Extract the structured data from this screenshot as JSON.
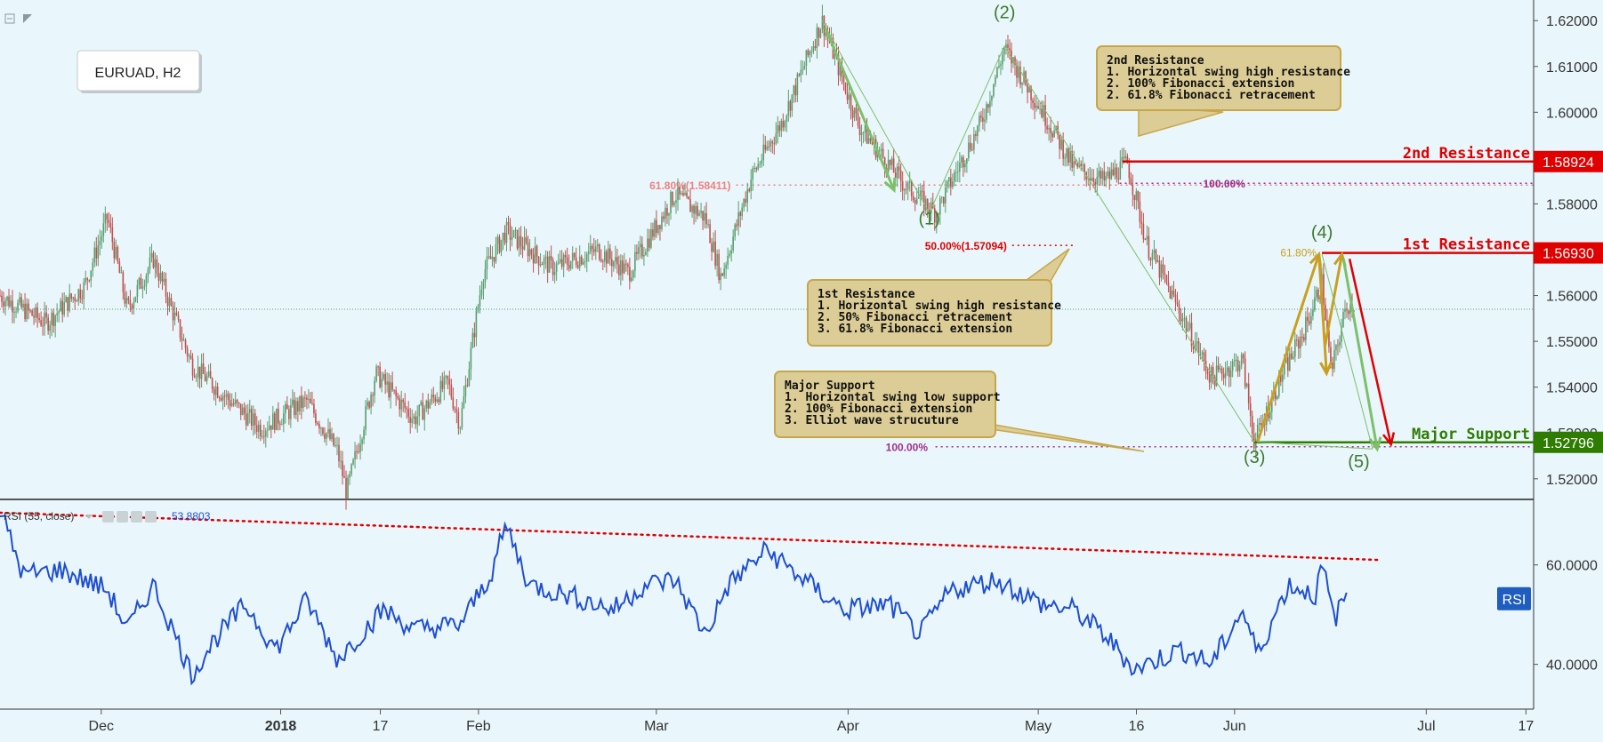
{
  "symbol_label": "EURUAD, H2",
  "colors": {
    "background": "#e9f6fb",
    "up_candle": "#5a9e6f",
    "down_candle": "#c0504d",
    "resistance": "#e00000",
    "support": "#2e7d00",
    "wave_green": "#7cc06a",
    "wave_gold": "#c8a020",
    "rsi_line": "#1f4fd0",
    "fib_magenta": "#a0308a",
    "annotation_bg": "#dccd96",
    "annotation_border": "#c7a64a"
  },
  "chart_data": [
    {
      "type": "line",
      "title": "EURUAD, H2",
      "y_axis": {
        "ylim": [
          1.5155,
          1.6245
        ],
        "ticks": [
          "1.52000",
          "1.53000",
          "1.54000",
          "1.55000",
          "1.56000",
          "1.57000",
          "1.58000",
          "1.59000",
          "1.60000",
          "1.61000",
          "1.62000"
        ]
      },
      "x_axis": {
        "ticks": [
          {
            "label": "Dec",
            "t": 0.066
          },
          {
            "label": "2018",
            "t": 0.183
          },
          {
            "label": "17",
            "t": 0.248
          },
          {
            "label": "Feb",
            "t": 0.312
          },
          {
            "label": "Mar",
            "t": 0.428
          },
          {
            "label": "Apr",
            "t": 0.553
          },
          {
            "label": "May",
            "t": 0.677
          },
          {
            "label": "16",
            "t": 0.741
          },
          {
            "label": "Jun",
            "t": 0.805
          },
          {
            "label": "Jul",
            "t": 0.93
          },
          {
            "label": "17",
            "t": 0.995
          }
        ]
      },
      "price_path": [
        [
          0.0,
          1.56
        ],
        [
          0.03,
          1.554
        ],
        [
          0.055,
          1.562
        ],
        [
          0.07,
          1.577
        ],
        [
          0.083,
          1.557
        ],
        [
          0.1,
          1.568
        ],
        [
          0.125,
          1.545
        ],
        [
          0.15,
          1.537
        ],
        [
          0.17,
          1.531
        ],
        [
          0.2,
          1.537
        ],
        [
          0.22,
          1.526
        ],
        [
          0.226,
          1.517
        ],
        [
          0.245,
          1.543
        ],
        [
          0.27,
          1.533
        ],
        [
          0.292,
          1.541
        ],
        [
          0.3,
          1.532
        ],
        [
          0.315,
          1.565
        ],
        [
          0.33,
          1.574
        ],
        [
          0.36,
          1.566
        ],
        [
          0.39,
          1.57
        ],
        [
          0.41,
          1.565
        ],
        [
          0.44,
          1.582
        ],
        [
          0.46,
          1.577
        ],
        [
          0.47,
          1.564
        ],
        [
          0.49,
          1.586
        ],
        [
          0.51,
          1.598
        ],
        [
          0.536,
          1.62
        ],
        [
          0.56,
          1.597
        ],
        [
          0.59,
          1.584
        ],
        [
          0.61,
          1.578
        ],
        [
          0.64,
          1.598
        ],
        [
          0.655,
          1.614
        ],
        [
          0.68,
          1.6
        ],
        [
          0.7,
          1.588
        ],
        [
          0.72,
          1.585
        ],
        [
          0.735,
          1.589
        ],
        [
          0.748,
          1.571
        ],
        [
          0.77,
          1.556
        ],
        [
          0.79,
          1.542
        ],
        [
          0.81,
          1.546
        ],
        [
          0.818,
          1.528
        ],
        [
          0.835,
          1.542
        ],
        [
          0.85,
          1.552
        ],
        [
          0.862,
          1.563
        ],
        [
          0.868,
          1.543
        ],
        [
          0.878,
          1.558
        ]
      ],
      "levels": [
        {
          "name": "2nd Resistance",
          "value": 1.58924,
          "label": "1.58924",
          "from": 0.732
        },
        {
          "name": "1st Resistance",
          "value": 1.5693,
          "label": "1.56930",
          "from": 0.862
        },
        {
          "name": "Major Support",
          "value": 1.52796,
          "label": "1.52796",
          "from": 0.818
        }
      ],
      "current_price_line": 1.557,
      "fib_lines": [
        {
          "label": "61.80%(1.58411)",
          "value": 1.58411,
          "from": 0.48,
          "to": 1.0,
          "color": "#f08080"
        },
        {
          "label": "50.00%(1.57094)",
          "value": 1.57094,
          "from": 0.66,
          "to": 0.7,
          "color": "#e00000"
        },
        {
          "label": "100.00%",
          "value": 1.5845,
          "from": 0.73,
          "to": 1.0,
          "color": "#a0308a"
        },
        {
          "label": "100.00%",
          "value": 1.527,
          "from": 0.61,
          "to": 1.0,
          "color": "#a0308a"
        }
      ],
      "gold_label_618": "61.80%",
      "wave_labels": [
        {
          "label": "(1)",
          "t": 0.606,
          "v": 1.5755
        },
        {
          "label": "(2)",
          "t": 0.655,
          "v": 1.6205
        },
        {
          "label": "(3)",
          "t": 0.818,
          "v": 1.5235
        },
        {
          "label": "(4)",
          "t": 0.862,
          "v": 1.5725
        },
        {
          "label": "(5)",
          "t": 0.886,
          "v": 1.5225
        }
      ],
      "annotations": [
        {
          "title": "2nd Resistance",
          "lines": [
            "1. Horizontal swing high resistance",
            "2. 100% Fibonacci extension",
            "2. 61.8% Fibonacci retracement"
          ]
        },
        {
          "title": "1st Resistance",
          "lines": [
            "1. Horizontal swing high resistance",
            "2. 50% Fibonacci retracement",
            "3. 61.8% Fibonacci extension"
          ]
        },
        {
          "title": "Major Support",
          "lines": [
            "1. Horizontal swing low support",
            "2. 100% Fibonacci extension",
            "3. Elliot wave strucuture"
          ]
        }
      ]
    },
    {
      "type": "line",
      "title": "RSI (55, close)",
      "current_value": "53.8803",
      "badge": "RSI",
      "y_axis": {
        "ylim": [
          31,
          73
        ],
        "ticks": [
          "40.0000",
          "60.0000"
        ]
      },
      "trendline": [
        [
          0.0,
          70.5
        ],
        [
          0.9,
          61.0
        ]
      ],
      "rsi_path": [
        [
          0.0,
          71
        ],
        [
          0.015,
          58
        ],
        [
          0.04,
          59
        ],
        [
          0.07,
          55
        ],
        [
          0.083,
          47
        ],
        [
          0.1,
          56
        ],
        [
          0.125,
          38
        ],
        [
          0.14,
          45
        ],
        [
          0.16,
          52
        ],
        [
          0.18,
          43
        ],
        [
          0.2,
          53
        ],
        [
          0.22,
          41
        ],
        [
          0.25,
          51
        ],
        [
          0.27,
          47
        ],
        [
          0.3,
          48
        ],
        [
          0.32,
          58
        ],
        [
          0.33,
          68
        ],
        [
          0.345,
          56
        ],
        [
          0.37,
          54
        ],
        [
          0.4,
          51
        ],
        [
          0.42,
          56
        ],
        [
          0.44,
          57
        ],
        [
          0.46,
          46
        ],
        [
          0.475,
          56
        ],
        [
          0.5,
          63
        ],
        [
          0.52,
          58
        ],
        [
          0.55,
          51
        ],
        [
          0.58,
          52
        ],
        [
          0.6,
          46
        ],
        [
          0.62,
          55
        ],
        [
          0.65,
          57
        ],
        [
          0.68,
          52
        ],
        [
          0.7,
          51
        ],
        [
          0.72,
          46
        ],
        [
          0.74,
          39
        ],
        [
          0.77,
          43
        ],
        [
          0.79,
          40
        ],
        [
          0.81,
          51
        ],
        [
          0.82,
          42
        ],
        [
          0.84,
          56
        ],
        [
          0.858,
          54
        ],
        [
          0.862,
          60
        ],
        [
          0.87,
          49
        ],
        [
          0.878,
          54
        ]
      ]
    }
  ]
}
